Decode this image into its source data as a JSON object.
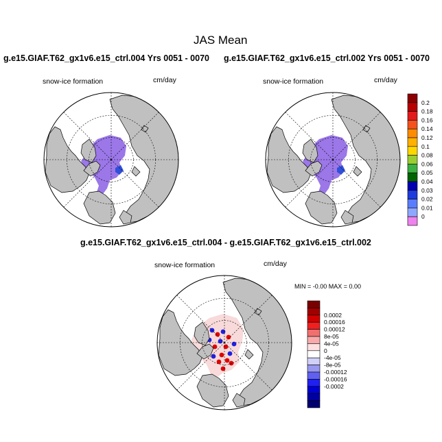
{
  "figure": {
    "main_title": "JAS Mean",
    "panels": [
      {
        "title": "g.e15.GIAF.T62_gx1v6.e15_ctrl.004  Yrs 0051 - 0070",
        "field_label": "snow-ice formation",
        "units": "cm/day"
      },
      {
        "title": "g.e15.GIAF.T62_gx1v6.e15_ctrl.002  Yrs 0051 - 0070",
        "field_label": "snow-ice formation",
        "units": "cm/day"
      },
      {
        "title": "g.e15.GIAF.T62_gx1v6.e15_ctrl.004 - g.e15.GIAF.T62_gx1v6.e15_ctrl.002",
        "field_label": "snow-ice formation",
        "units": "cm/day",
        "minmax": "MIN =  -0.00 MAX =   0.00"
      }
    ]
  },
  "colors": {
    "land": "#c0c0c0",
    "ice_field": "#9b77e8",
    "ice_low": "#d6c0f5",
    "diff_pos": "#e00000",
    "diff_neg": "#2020e0"
  },
  "chart_data": [
    {
      "type": "heatmap",
      "projection": "north-polar-stereographic",
      "title": "g.e15.GIAF.T62_gx1v6.e15_ctrl.004  Yrs 0051 - 0070",
      "colorbar": {
        "labels": [
          "0.2",
          "0.18",
          "0.16",
          "0.14",
          "0.12",
          "0.1",
          "0.08",
          "0.06",
          "0.05",
          "0.04",
          "0.03",
          "0.02",
          "0.01",
          "0"
        ],
        "colors": [
          "#8b0000",
          "#b80000",
          "#e31a1c",
          "#f4511e",
          "#ff8c00",
          "#ffb000",
          "#ffd700",
          "#9acd32",
          "#3cb043",
          "#006400",
          "#0000b0",
          "#1e3cdc",
          "#5a7dff",
          "#8ea8ff",
          "#ee82ee"
        ]
      }
    },
    {
      "type": "heatmap",
      "projection": "north-polar-stereographic",
      "title": "g.e15.GIAF.T62_gx1v6.e15_ctrl.002  Yrs 0051 - 0070"
    },
    {
      "type": "heatmap",
      "projection": "north-polar-stereographic",
      "title": "g.e15.GIAF.T62_gx1v6.e15_ctrl.004 - g.e15.GIAF.T62_gx1v6.e15_ctrl.002",
      "colorbar": {
        "labels": [
          "0.0002",
          "0.00016",
          "0.00012",
          "8e-05",
          "4e-05",
          "0",
          "-4e-05",
          "-8e-05",
          "-0.00012",
          "-0.00016",
          "-0.0002"
        ],
        "colors": [
          "#7a0000",
          "#a00000",
          "#d00000",
          "#f02020",
          "#f07070",
          "#f8aaaa",
          "#fde0e0",
          "#ffffff",
          "#d0d0f8",
          "#9898f0",
          "#6060f0",
          "#2020f0",
          "#0000d0",
          "#0000a0",
          "#000070"
        ]
      }
    }
  ]
}
